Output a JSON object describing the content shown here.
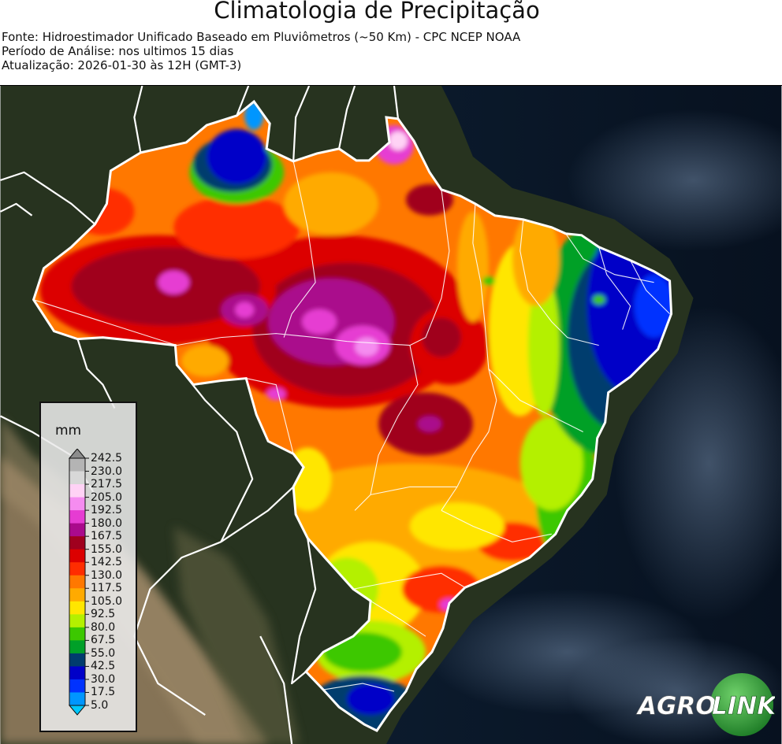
{
  "header": {
    "title": "Climatologia de Precipitação",
    "source": "Fonte: Hidroestimador Unificado Baseado em Pluviômetros (~50 Km) - CPC NCEP NOAA",
    "period": "Período de Análise: nos ultimos 15 dias",
    "updated": "Atualização: 2026-01-30 às 12H (GMT-3)"
  },
  "legend": {
    "unit": "mm",
    "levels": [
      {
        "value": "242.5",
        "color": "#8c8c8c"
      },
      {
        "value": "230.0",
        "color": "#b4b4b4"
      },
      {
        "value": "217.5",
        "color": "#d8d8d8"
      },
      {
        "value": "205.0",
        "color": "#ffd2f5"
      },
      {
        "value": "192.5",
        "color": "#f58cf0"
      },
      {
        "value": "180.0",
        "color": "#e63cd2"
      },
      {
        "value": "167.5",
        "color": "#aa0a8c"
      },
      {
        "value": "155.0",
        "color": "#a0001e"
      },
      {
        "value": "142.5",
        "color": "#dc0000"
      },
      {
        "value": "130.0",
        "color": "#ff2d00"
      },
      {
        "value": "117.5",
        "color": "#ff7800"
      },
      {
        "value": "105.0",
        "color": "#ffaa00"
      },
      {
        "value": "92.5",
        "color": "#ffe600"
      },
      {
        "value": "80.0",
        "color": "#b4f000"
      },
      {
        "value": "67.5",
        "color": "#3cc800"
      },
      {
        "value": "55.0",
        "color": "#00a028"
      },
      {
        "value": "42.5",
        "color": "#003c6e"
      },
      {
        "value": "30.0",
        "color": "#0000c8"
      },
      {
        "value": "17.5",
        "color": "#0032ff"
      },
      {
        "value": "5.0",
        "color": "#0096ff"
      }
    ],
    "min_color": "#00c8ff"
  },
  "logo": {
    "part1": "AGRO",
    "part2": "LINK",
    "green": "#2e9e3a"
  },
  "colors": {
    "ocean": "#0b1a2e",
    "land": "#2a3824",
    "andes": "#8a7a63"
  }
}
